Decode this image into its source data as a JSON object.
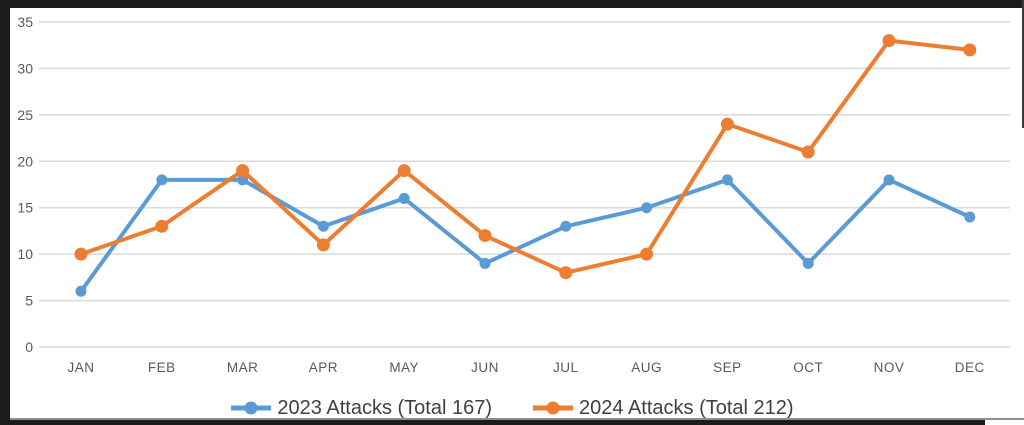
{
  "chart_data": {
    "type": "line",
    "categories": [
      "JAN",
      "FEB",
      "MAR",
      "APR",
      "MAY",
      "JUN",
      "JUL",
      "AUG",
      "SEP",
      "OCT",
      "NOV",
      "DEC"
    ],
    "series": [
      {
        "name": "2023 Attacks (Total 167)",
        "total": 167,
        "color": "#5B9BD5",
        "values": [
          6,
          18,
          18,
          13,
          16,
          9,
          13,
          15,
          18,
          9,
          18,
          14
        ]
      },
      {
        "name": "2024 Attacks (Total 212)",
        "total": 212,
        "color": "#ED7D31",
        "values": [
          10,
          13,
          19,
          11,
          19,
          12,
          8,
          10,
          24,
          21,
          33,
          32
        ]
      }
    ],
    "title": "",
    "xlabel": "",
    "ylabel": "",
    "ylim": [
      0,
      35
    ],
    "y_ticks": [
      0,
      5,
      10,
      15,
      20,
      25,
      30,
      35
    ],
    "grid": true,
    "legend_position": "bottom"
  },
  "colors": {
    "gridline": "#D9D9D9",
    "axis_text": "#595959",
    "legend_text": "#404040",
    "window_frame": "#1b1b1b",
    "bottom_rule": "#8f8f8f",
    "background": "#ffffff"
  }
}
